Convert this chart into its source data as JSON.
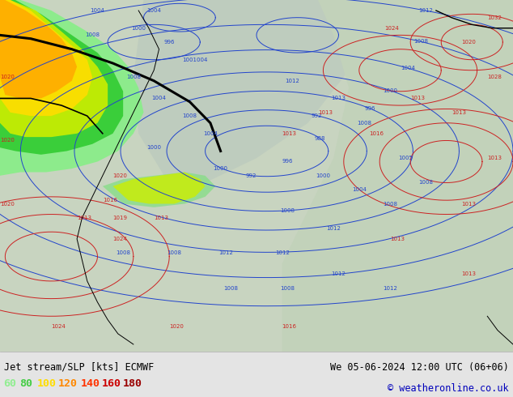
{
  "title_left": "Jet stream/SLP [kts] ECMWF",
  "title_right": "We 05-06-2024 12:00 UTC (06+06)",
  "copyright": "© weatheronline.co.uk",
  "legend_values": [
    "60",
    "80",
    "100",
    "120",
    "140",
    "160",
    "180"
  ],
  "legend_colors": [
    "#90ee90",
    "#44cc44",
    "#ffdd00",
    "#ff8800",
    "#ff3300",
    "#cc0000",
    "#990000"
  ],
  "bottom_bar_bg": "#e4e4e4",
  "map_bg": "#c8d4c0",
  "fig_width": 6.34,
  "fig_height": 4.9,
  "dpi": 100
}
